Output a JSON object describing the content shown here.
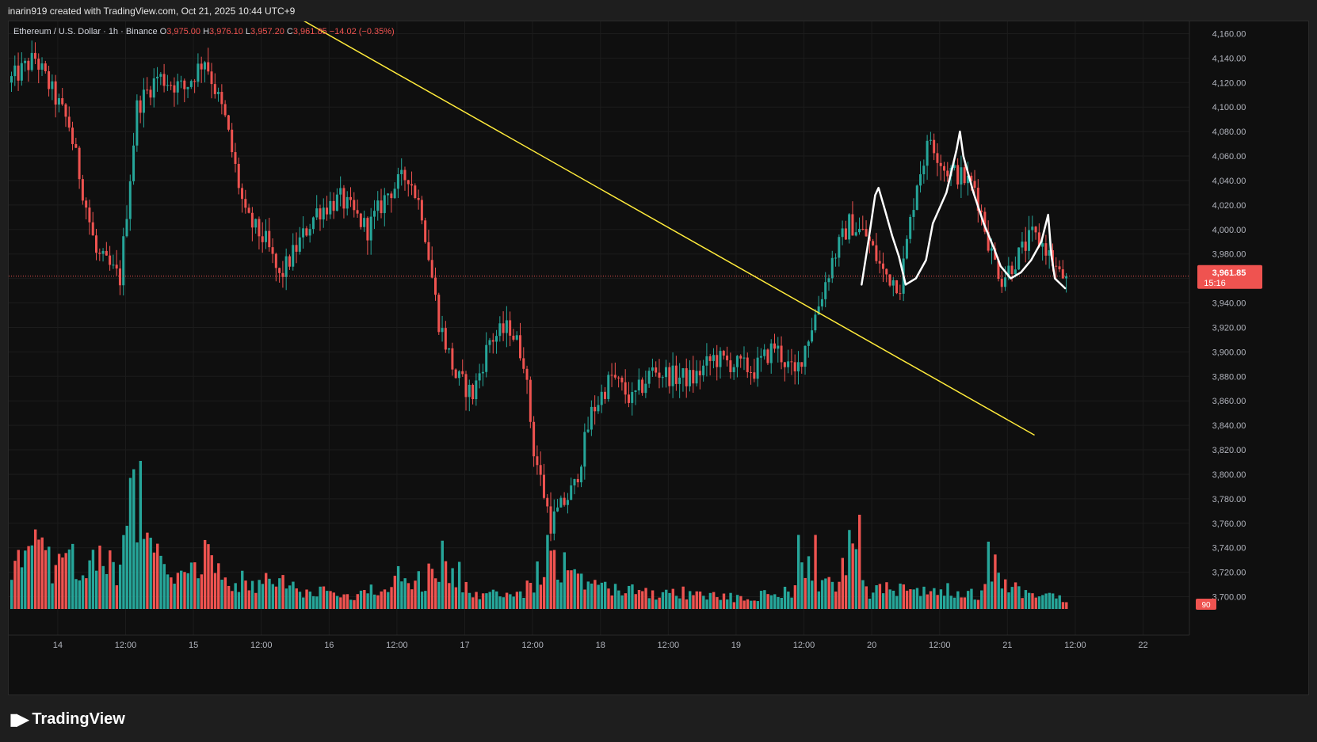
{
  "header": {
    "credit": "inarin919 created with TradingView.com, Oct 21, 2025 10:44 UTC+9"
  },
  "legend": {
    "symbol": "Ethereum / U.S. Dollar · 1h · Binance",
    "o_label": "O",
    "o_value": "3,975.00",
    "h_label": "H",
    "h_value": "3,976.10",
    "l_label": "L",
    "l_value": "3,957.20",
    "c_label": "C",
    "c_value": "3,961.85",
    "change": "−14.02 (−0.35%)"
  },
  "price_badge": {
    "price": "3,961.85",
    "countdown": "15:16"
  },
  "volume_badge": "90",
  "brand": {
    "name": "TradingView",
    "icon": "tradingview-logo-icon"
  },
  "colors": {
    "up": "#26a69a",
    "down": "#ef5350",
    "trendline": "#ffeb3b",
    "drawing": "#ffffff",
    "grid": "#1f1f1f",
    "text": "#b2b5be"
  },
  "chart_data": {
    "type": "candlestick",
    "symbol": "ETHUSD",
    "interval": "1h",
    "y_axis": {
      "range": [
        3690,
        4170
      ],
      "ticks": [
        "4,160.00",
        "4,140.00",
        "4,120.00",
        "4,100.00",
        "4,080.00",
        "4,060.00",
        "4,040.00",
        "4,020.00",
        "4,000.00",
        "3,980.00",
        "3,960.00",
        "3,940.00",
        "3,920.00",
        "3,900.00",
        "3,880.00",
        "3,860.00",
        "3,840.00",
        "3,820.00",
        "3,800.00",
        "3,780.00",
        "3,760.00",
        "3,740.00",
        "3,720.00",
        "3,700.00"
      ]
    },
    "x_axis": {
      "ticks": [
        "14",
        "12:00",
        "15",
        "12:00",
        "16",
        "12:00",
        "17",
        "12:00",
        "18",
        "12:00",
        "19",
        "12:00",
        "20",
        "12:00",
        "21",
        "12:00",
        "22"
      ]
    },
    "current_price": 3961.85,
    "keypoints": [
      [
        0,
        4120
      ],
      [
        8,
        4140
      ],
      [
        18,
        4085
      ],
      [
        26,
        3980
      ],
      [
        33,
        3960
      ],
      [
        38,
        4100
      ],
      [
        44,
        4125
      ],
      [
        52,
        4115
      ],
      [
        58,
        4140
      ],
      [
        64,
        4090
      ],
      [
        70,
        4010
      ],
      [
        76,
        3990
      ],
      [
        80,
        3960
      ],
      [
        86,
        3990
      ],
      [
        91,
        4015
      ],
      [
        98,
        4025
      ],
      [
        106,
        4000
      ],
      [
        112,
        4030
      ],
      [
        118,
        4045
      ],
      [
        122,
        4015
      ],
      [
        127,
        3925
      ],
      [
        132,
        3880
      ],
      [
        137,
        3865
      ],
      [
        142,
        3910
      ],
      [
        148,
        3920
      ],
      [
        152,
        3895
      ],
      [
        155,
        3820
      ],
      [
        160,
        3760
      ],
      [
        167,
        3790
      ],
      [
        172,
        3850
      ],
      [
        178,
        3880
      ],
      [
        184,
        3860
      ],
      [
        190,
        3885
      ],
      [
        196,
        3880
      ],
      [
        202,
        3878
      ],
      [
        208,
        3895
      ],
      [
        214,
        3890
      ],
      [
        220,
        3885
      ],
      [
        226,
        3905
      ],
      [
        232,
        3880
      ],
      [
        238,
        3930
      ],
      [
        243,
        3975
      ],
      [
        248,
        4005
      ],
      [
        253,
        3995
      ],
      [
        258,
        3965
      ],
      [
        263,
        3955
      ],
      [
        268,
        4040
      ],
      [
        272,
        4075
      ],
      [
        276,
        4050
      ],
      [
        280,
        4045
      ],
      [
        285,
        4035
      ],
      [
        290,
        3980
      ],
      [
        293,
        3960
      ],
      [
        297,
        3975
      ],
      [
        302,
        3995
      ],
      [
        306,
        3985
      ],
      [
        310,
        3962
      ]
    ],
    "volume_keypoints": [
      [
        0,
        25
      ],
      [
        6,
        45
      ],
      [
        12,
        30
      ],
      [
        18,
        35
      ],
      [
        25,
        40
      ],
      [
        32,
        25
      ],
      [
        36,
        90
      ],
      [
        42,
        35
      ],
      [
        50,
        30
      ],
      [
        57,
        40
      ],
      [
        64,
        25
      ],
      [
        70,
        20
      ],
      [
        80,
        20
      ],
      [
        90,
        12
      ],
      [
        100,
        10
      ],
      [
        110,
        15
      ],
      [
        115,
        30
      ],
      [
        120,
        20
      ],
      [
        127,
        35
      ],
      [
        134,
        15
      ],
      [
        140,
        12
      ],
      [
        148,
        8
      ],
      [
        154,
        20
      ],
      [
        158,
        45
      ],
      [
        165,
        25
      ],
      [
        170,
        15
      ],
      [
        180,
        15
      ],
      [
        190,
        10
      ],
      [
        200,
        12
      ],
      [
        210,
        8
      ],
      [
        220,
        10
      ],
      [
        230,
        12
      ],
      [
        234,
        30
      ],
      [
        238,
        20
      ],
      [
        243,
        15
      ],
      [
        247,
        50
      ],
      [
        252,
        12
      ],
      [
        258,
        15
      ],
      [
        265,
        12
      ],
      [
        272,
        18
      ],
      [
        280,
        10
      ],
      [
        286,
        12
      ],
      [
        290,
        30
      ],
      [
        295,
        15
      ],
      [
        302,
        12
      ],
      [
        307,
        14
      ],
      [
        310,
        8
      ]
    ],
    "volume_spikes": [
      [
        38,
        110
      ],
      [
        132,
        35
      ],
      [
        158,
        55
      ],
      [
        232,
        55
      ],
      [
        237,
        55
      ],
      [
        250,
        70
      ],
      [
        288,
        50
      ]
    ],
    "annotations": [
      {
        "type": "trendline",
        "from": {
          "x": 83,
          "y": 4176
        },
        "to": {
          "x": 302,
          "y": 3832
        }
      },
      {
        "type": "freehand",
        "points": [
          [
            251,
            3955
          ],
          [
            253,
            3990
          ],
          [
            255,
            4028
          ],
          [
            256,
            4034
          ],
          [
            258,
            4015
          ],
          [
            260,
            3995
          ],
          [
            262,
            3978
          ],
          [
            264,
            3955
          ],
          [
            267,
            3960
          ],
          [
            270,
            3975
          ],
          [
            272,
            4005
          ],
          [
            276,
            4030
          ],
          [
            279,
            4065
          ],
          [
            280,
            4080
          ],
          [
            281,
            4060
          ],
          [
            284,
            4030
          ],
          [
            287,
            4005
          ],
          [
            290,
            3985
          ],
          [
            292,
            3970
          ],
          [
            295,
            3960
          ],
          [
            298,
            3965
          ],
          [
            301,
            3975
          ],
          [
            304,
            3990
          ],
          [
            306,
            4012
          ],
          [
            307,
            3978
          ],
          [
            308,
            3960
          ],
          [
            311,
            3952
          ]
        ]
      }
    ]
  }
}
